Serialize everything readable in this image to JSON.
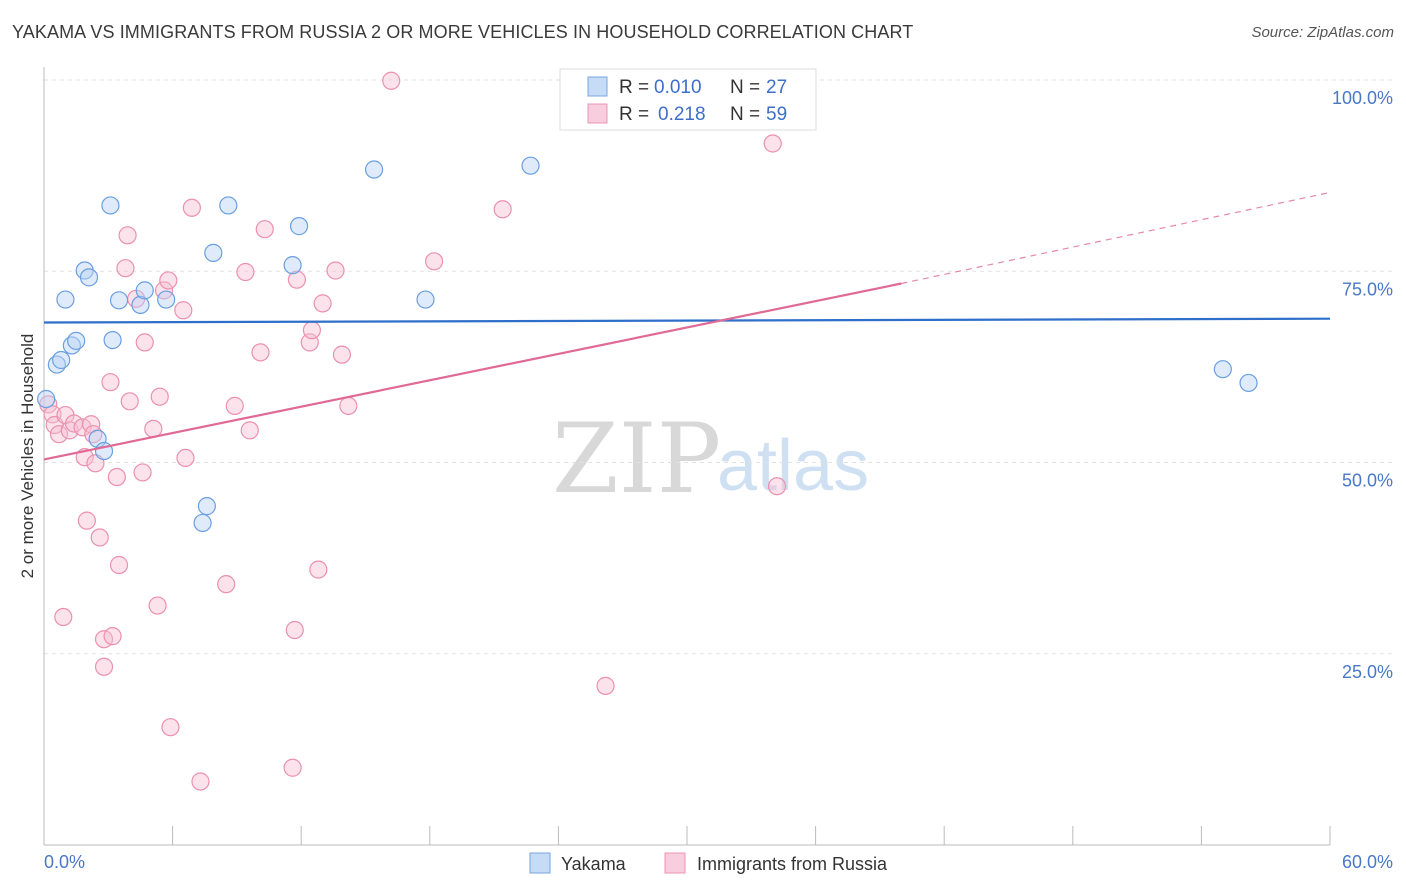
{
  "title": "YAKAMA VS IMMIGRANTS FROM RUSSIA 2 OR MORE VEHICLES IN HOUSEHOLD CORRELATION CHART",
  "source": "Source: ZipAtlas.com",
  "watermark": {
    "zip": "ZIP",
    "atlas": "atlas"
  },
  "legend": {
    "r_label": "R =",
    "n_label": "N =",
    "rows": [
      {
        "series": "Yakama",
        "r": "0.010",
        "n": "27"
      },
      {
        "series": "Immigrants from Russia",
        "r": "0.218",
        "n": "59"
      }
    ]
  },
  "bottom_legend": [
    {
      "label": "Yakama"
    },
    {
      "label": "Immigrants from Russia"
    }
  ],
  "chart_data": {
    "type": "scatter",
    "title": "YAKAMA VS IMMIGRANTS FROM RUSSIA 2 OR MORE VEHICLES IN HOUSEHOLD CORRELATION CHART",
    "xlabel": "",
    "ylabel": "2 or more Vehicles in Household",
    "xlim": [
      0,
      60
    ],
    "ylim": [
      0,
      100
    ],
    "x_ticks": [
      "0.0%",
      "60.0%"
    ],
    "y_ticks": [
      {
        "value": 100,
        "label": "100.0%"
      },
      {
        "value": 75,
        "label": "75.0%"
      },
      {
        "value": 50,
        "label": "50.0%"
      },
      {
        "value": 25,
        "label": "25.0%"
      }
    ],
    "grid": true,
    "colors": {
      "yakama": "#6a9fe0",
      "russia": "#ec90b0",
      "yakama_line": "#2f6fc9",
      "russia_line": "#e06a95"
    },
    "series": [
      {
        "name": "Yakama",
        "points": [
          [
            0.1,
            58.3
          ],
          [
            0.6,
            62.8
          ],
          [
            0.8,
            63.4
          ],
          [
            1.0,
            71.3
          ],
          [
            1.3,
            65.3
          ],
          [
            1.5,
            65.9
          ],
          [
            1.9,
            75.1
          ],
          [
            2.1,
            74.2
          ],
          [
            2.5,
            53.1
          ],
          [
            2.8,
            51.5
          ],
          [
            3.1,
            83.6
          ],
          [
            3.2,
            66.0
          ],
          [
            3.5,
            71.2
          ],
          [
            4.5,
            70.6
          ],
          [
            4.7,
            72.5
          ],
          [
            5.7,
            71.3
          ],
          [
            7.4,
            42.1
          ],
          [
            7.6,
            44.3
          ],
          [
            7.9,
            77.4
          ],
          [
            8.6,
            83.6
          ],
          [
            11.6,
            75.8
          ],
          [
            11.9,
            80.9
          ],
          [
            15.4,
            88.3
          ],
          [
            17.8,
            71.3
          ],
          [
            22.7,
            88.8
          ],
          [
            55.0,
            62.2
          ],
          [
            56.2,
            60.4
          ]
        ],
        "trend": [
          [
            0,
            68.3
          ],
          [
            60,
            68.8
          ]
        ]
      },
      {
        "name": "Immigrants from Russia",
        "points": [
          [
            0.2,
            57.6
          ],
          [
            0.4,
            56.3
          ],
          [
            0.5,
            54.9
          ],
          [
            0.7,
            53.7
          ],
          [
            0.9,
            29.8
          ],
          [
            1.0,
            56.2
          ],
          [
            1.2,
            54.2
          ],
          [
            1.4,
            55.1
          ],
          [
            1.8,
            54.6
          ],
          [
            1.9,
            50.7
          ],
          [
            2.0,
            42.4
          ],
          [
            2.2,
            55.0
          ],
          [
            2.3,
            53.7
          ],
          [
            2.4,
            49.9
          ],
          [
            2.6,
            40.2
          ],
          [
            2.8,
            26.9
          ],
          [
            2.8,
            23.3
          ],
          [
            3.1,
            60.5
          ],
          [
            3.2,
            27.3
          ],
          [
            3.4,
            48.1
          ],
          [
            3.5,
            36.6
          ],
          [
            3.8,
            75.4
          ],
          [
            3.9,
            79.7
          ],
          [
            4.0,
            58.0
          ],
          [
            4.3,
            71.4
          ],
          [
            4.6,
            48.7
          ],
          [
            4.7,
            65.7
          ],
          [
            5.1,
            54.4
          ],
          [
            5.3,
            31.3
          ],
          [
            5.4,
            58.6
          ],
          [
            5.6,
            72.5
          ],
          [
            5.8,
            73.8
          ],
          [
            5.9,
            15.4
          ],
          [
            6.5,
            69.9
          ],
          [
            6.6,
            50.6
          ],
          [
            6.9,
            83.3
          ],
          [
            7.3,
            8.3
          ],
          [
            8.5,
            34.1
          ],
          [
            8.9,
            57.4
          ],
          [
            9.4,
            74.9
          ],
          [
            9.6,
            54.2
          ],
          [
            10.1,
            64.4
          ],
          [
            10.3,
            80.5
          ],
          [
            11.6,
            10.1
          ],
          [
            11.7,
            28.1
          ],
          [
            11.8,
            73.9
          ],
          [
            12.4,
            65.7
          ],
          [
            12.5,
            67.3
          ],
          [
            12.8,
            36.0
          ],
          [
            13.0,
            70.8
          ],
          [
            13.6,
            75.1
          ],
          [
            13.9,
            64.1
          ],
          [
            14.2,
            57.4
          ],
          [
            16.2,
            99.9
          ],
          [
            18.2,
            76.3
          ],
          [
            21.4,
            83.1
          ],
          [
            26.2,
            20.8
          ],
          [
            34.0,
            91.7
          ],
          [
            34.2,
            46.9
          ]
        ],
        "trend": [
          [
            0,
            50.4
          ],
          [
            40,
            73.4
          ]
        ],
        "trend_extension": [
          [
            40,
            73.4
          ],
          [
            60,
            85.3
          ]
        ]
      }
    ]
  }
}
